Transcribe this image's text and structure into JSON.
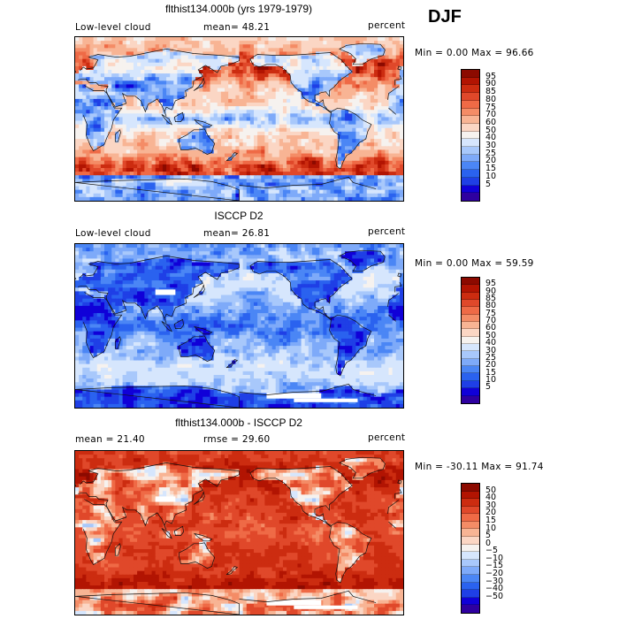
{
  "season": "DJF",
  "colors": {
    "model_scale": [
      "#2e00a0",
      "#1000d8",
      "#1f3fe6",
      "#2a62ef",
      "#4b86f5",
      "#7eaaf9",
      "#a8c8fb",
      "#d6e6fd",
      "#f6f2ef",
      "#fbd6c4",
      "#f8b494",
      "#f48c66",
      "#ef6a46",
      "#e0482a",
      "#cc2c10",
      "#b21402",
      "#8c0a00"
    ],
    "diff_scale": [
      "#2e00a0",
      "#1000d8",
      "#1f3fe6",
      "#2a62ef",
      "#4b86f5",
      "#7eaaf9",
      "#a8c8fb",
      "#d6e6fd",
      "#f6f2ef",
      "#fbd6c4",
      "#f8b494",
      "#f48c66",
      "#ef6a46",
      "#e0482a",
      "#cc2c10",
      "#b21402",
      "#8c0a00"
    ]
  },
  "panels": [
    {
      "title": "flthist134.000b (yrs 1979-1979)",
      "left_label": "Low-level cloud",
      "mid_label": "mean=  48.21",
      "right_label": "percent",
      "range_label": "Min =    0.00 Max =  96.66",
      "ticks": [
        "95",
        "90",
        "85",
        "80",
        "75",
        "70",
        "60",
        "50",
        "40",
        "30",
        "25",
        "20",
        "15",
        "10",
        "5"
      ],
      "field": "model"
    },
    {
      "title": "ISCCP D2",
      "left_label": "Low-level cloud",
      "mid_label": "mean=  26.81",
      "right_label": "percent",
      "range_label": "Min =    0.00 Max =  59.59",
      "ticks": [
        "95",
        "90",
        "85",
        "80",
        "75",
        "70",
        "60",
        "50",
        "40",
        "30",
        "25",
        "20",
        "15",
        "10",
        "5"
      ],
      "field": "obs"
    },
    {
      "title": "flthist134.000b - ISCCP D2",
      "left_label": "mean =  21.40",
      "mid_label": "rmse =  29.60",
      "right_label": "percent",
      "range_label": "Min = -30.11 Max =  91.74",
      "ticks": [
        "50",
        "40",
        "30",
        "20",
        "15",
        "10",
        "5",
        "0",
        "−5",
        "−10",
        "−15",
        "−20",
        "−30",
        "−40",
        "−50"
      ],
      "field": "diff"
    }
  ]
}
